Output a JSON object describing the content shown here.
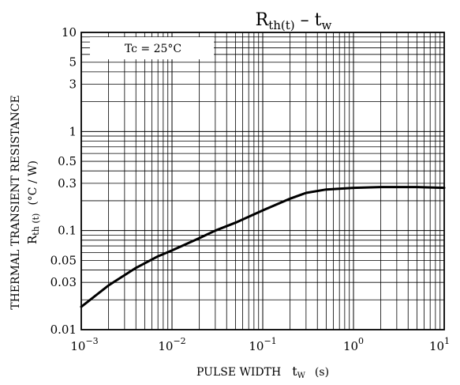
{
  "chart_data": {
    "type": "line",
    "title_main": "R",
    "title_main_sub": "th(t)",
    "title_sep": " – ",
    "title_x": "t",
    "title_x_sub": "w",
    "ylabel_line1": "THERMAL TRANSIENT RESISTANCE",
    "ylabel_r": "R",
    "ylabel_r_sub": "th (t)",
    "ylabel_unit": "(°C / W)",
    "xlabel_text": "PULSE WIDTH",
    "xlabel_t": "t",
    "xlabel_t_sub": "W",
    "xlabel_unit": "(s)",
    "annotation": "Tc = 25°C",
    "x_scale": "log",
    "y_scale": "log",
    "xlim": [
      0.001,
      10
    ],
    "ylim": [
      0.01,
      10
    ],
    "grid": true,
    "x_ticks": [
      {
        "base": "10",
        "exp": "−3"
      },
      {
        "base": "10",
        "exp": "−2"
      },
      {
        "base": "10",
        "exp": "−1"
      },
      {
        "base": "10",
        "exp": "0"
      },
      {
        "base": "10",
        "exp": "1"
      }
    ],
    "y_ticks": [
      "10",
      "5",
      "3",
      "1",
      "0.5",
      "0.3",
      "0.1",
      "0.05",
      "0.03",
      "0.01"
    ],
    "y_tick_values": [
      10,
      5,
      3,
      1,
      0.5,
      0.3,
      0.1,
      0.05,
      0.03,
      0.01
    ],
    "series": [
      {
        "x": [
          0.001,
          0.002,
          0.004,
          0.007,
          0.01,
          0.02,
          0.03,
          0.05,
          0.1,
          0.2,
          0.3,
          0.5,
          1,
          2,
          5,
          10
        ],
        "y": [
          0.017,
          0.028,
          0.042,
          0.055,
          0.063,
          0.084,
          0.1,
          0.12,
          0.16,
          0.21,
          0.24,
          0.26,
          0.27,
          0.275,
          0.275,
          0.27
        ]
      }
    ]
  }
}
